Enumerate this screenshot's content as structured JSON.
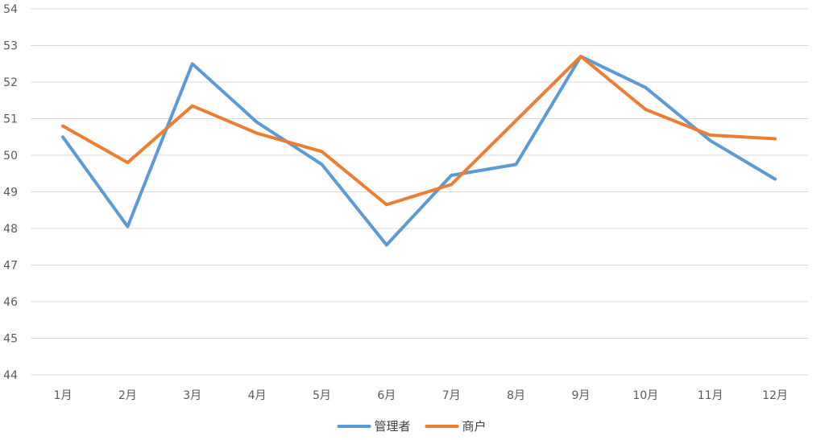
{
  "chart_data": {
    "type": "line",
    "categories": [
      "1月",
      "2月",
      "3月",
      "4月",
      "5月",
      "6月",
      "7月",
      "8月",
      "9月",
      "10月",
      "11月",
      "12月"
    ],
    "series": [
      {
        "name": "管理者",
        "color": "#5B9BD5",
        "values": [
          50.5,
          48.05,
          52.5,
          50.9,
          49.75,
          47.55,
          49.45,
          49.75,
          52.7,
          51.85,
          50.4,
          49.35
        ]
      },
      {
        "name": "商户",
        "color": "#ED7D31",
        "values": [
          50.8,
          49.8,
          51.35,
          50.6,
          50.1,
          48.65,
          49.2,
          50.95,
          52.7,
          51.25,
          50.55,
          50.45
        ]
      }
    ],
    "ylim": [
      44,
      54
    ],
    "yticks": [
      44,
      45,
      46,
      47,
      48,
      49,
      50,
      51,
      52,
      53,
      54
    ],
    "grid": true,
    "legend_position": "bottom"
  }
}
